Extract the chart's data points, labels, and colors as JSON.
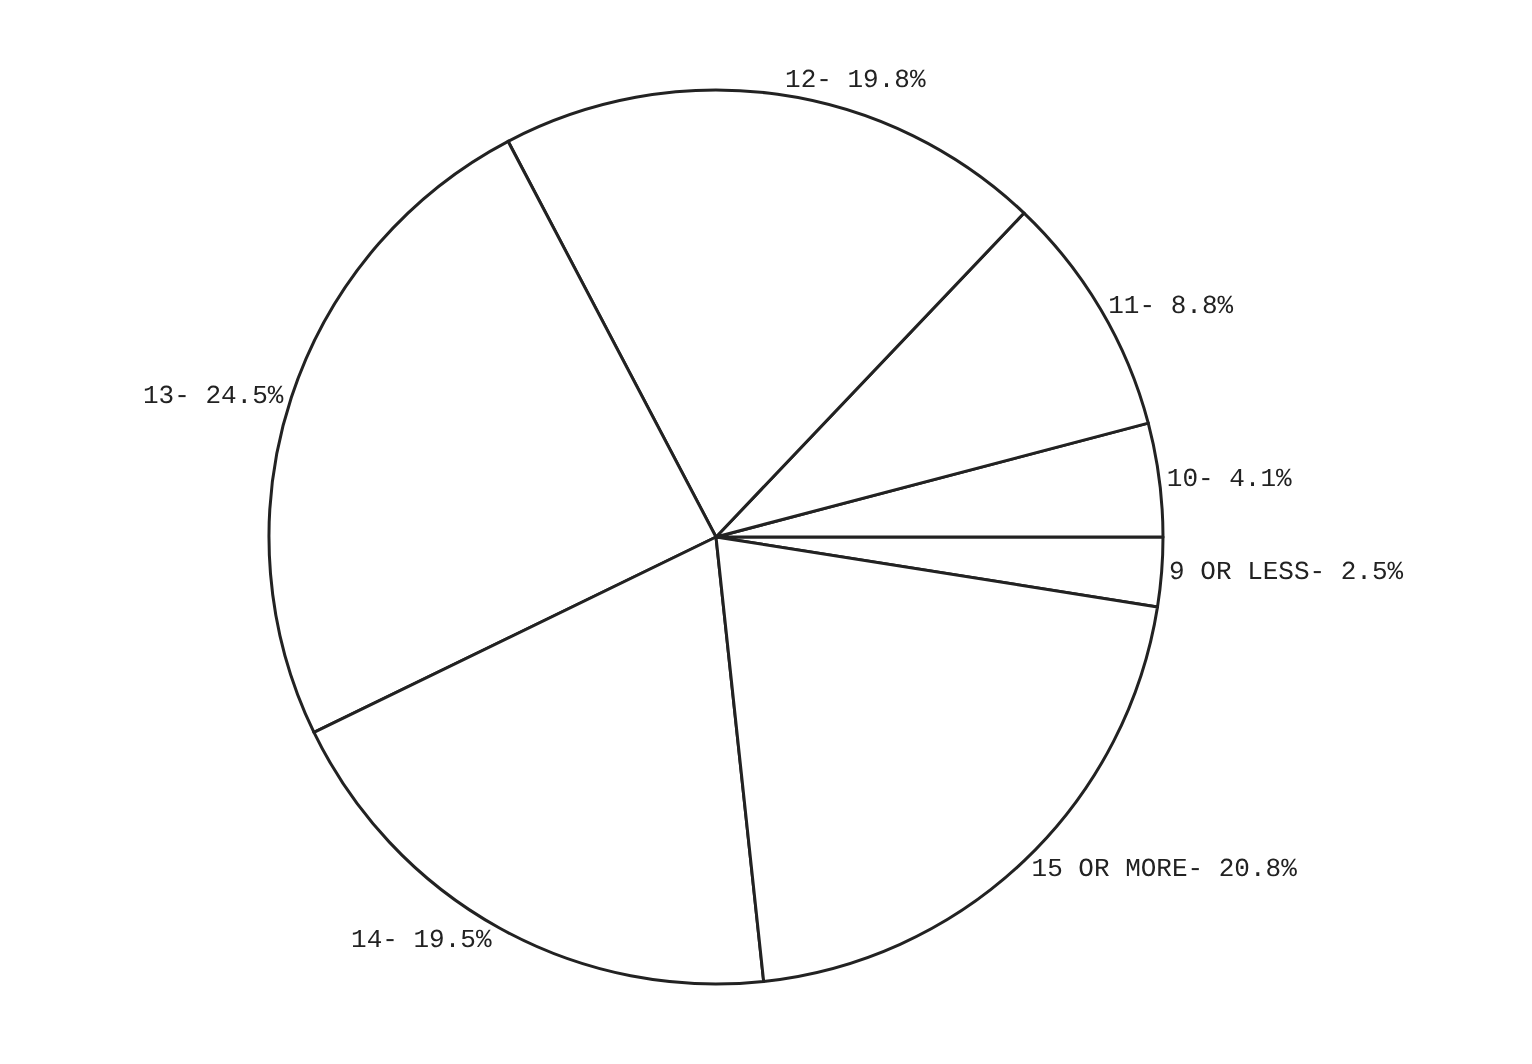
{
  "chart_data": {
    "type": "pie",
    "categories": [
      "9 OR LESS-",
      "10-",
      "11-",
      "12-",
      "13-",
      "14-",
      "15 OR MORE-"
    ],
    "values": [
      2.5,
      4.1,
      8.8,
      19.8,
      24.5,
      19.5,
      20.8
    ],
    "value_labels": [
      "2.5%",
      "4.1%",
      "8.8%",
      "19.8%",
      "24.5%",
      "19.5%",
      "20.8%"
    ],
    "colors": [
      "#ffffff",
      "#ffffff",
      "#ffffff",
      "#ffffff",
      "#ffffff",
      "#ffffff",
      "#ffffff"
    ],
    "legend": false
  }
}
